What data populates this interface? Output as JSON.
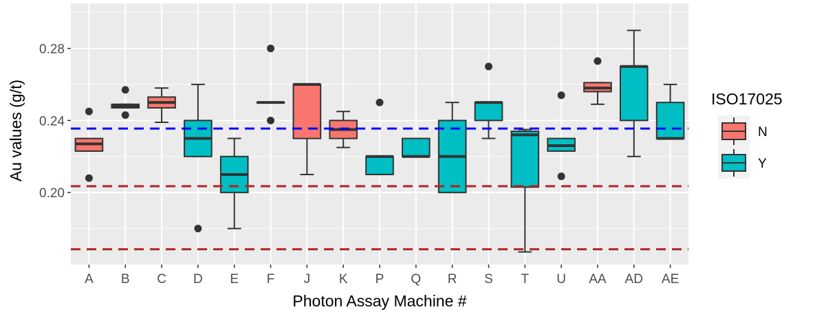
{
  "chart_data": {
    "type": "boxplot",
    "xlabel": "Photon Assay Machine #",
    "ylabel": "Au values (g/t)",
    "ylim": [
      0.16,
      0.305
    ],
    "yticks": [
      0.2,
      0.24,
      0.28
    ],
    "ytick_labels": [
      "0.20",
      "0.24",
      "0.28"
    ],
    "grid": true,
    "legend": {
      "title": "ISO17025",
      "position": "right",
      "entries": [
        {
          "label": "N",
          "color": "#F8766D"
        },
        {
          "label": "Y",
          "color": "#00BFC4"
        }
      ]
    },
    "reference_lines": [
      {
        "y": 0.2355,
        "color": "#0000ff",
        "style": "dashed"
      },
      {
        "y": 0.2035,
        "color": "#b22222",
        "style": "dashed"
      },
      {
        "y": 0.1685,
        "color": "#b22222",
        "style": "dashed"
      }
    ],
    "categories": [
      "A",
      "B",
      "C",
      "D",
      "E",
      "F",
      "J",
      "K",
      "P",
      "Q",
      "R",
      "S",
      "T",
      "U",
      "AA",
      "AD",
      "AE"
    ],
    "boxes": [
      {
        "category": "A",
        "group": "N",
        "whisker_low": 0.223,
        "q1": 0.223,
        "median": 0.227,
        "q3": 0.23,
        "whisker_high": 0.23,
        "outliers": [
          0.245,
          0.208
        ]
      },
      {
        "category": "B",
        "group": "N",
        "whisker_low": 0.247,
        "q1": 0.247,
        "median": 0.248,
        "q3": 0.249,
        "whisker_high": 0.249,
        "outliers": [
          0.257,
          0.243
        ]
      },
      {
        "category": "C",
        "group": "N",
        "whisker_low": 0.239,
        "q1": 0.247,
        "median": 0.25,
        "q3": 0.253,
        "whisker_high": 0.258,
        "outliers": []
      },
      {
        "category": "D",
        "group": "Y",
        "whisker_low": 0.22,
        "q1": 0.22,
        "median": 0.23,
        "q3": 0.24,
        "whisker_high": 0.26,
        "outliers": [
          0.18
        ]
      },
      {
        "category": "E",
        "group": "Y",
        "whisker_low": 0.18,
        "q1": 0.2,
        "median": 0.21,
        "q3": 0.22,
        "whisker_high": 0.23,
        "outliers": []
      },
      {
        "category": "F",
        "group": "N",
        "whisker_low": 0.25,
        "q1": 0.25,
        "median": 0.25,
        "q3": 0.25,
        "whisker_high": 0.25,
        "outliers": [
          0.28,
          0.24
        ]
      },
      {
        "category": "J",
        "group": "N",
        "whisker_low": 0.21,
        "q1": 0.23,
        "median": 0.26,
        "q3": 0.26,
        "whisker_high": 0.26,
        "outliers": []
      },
      {
        "category": "K",
        "group": "N",
        "whisker_low": 0.225,
        "q1": 0.23,
        "median": 0.235,
        "q3": 0.24,
        "whisker_high": 0.245,
        "outliers": []
      },
      {
        "category": "P",
        "group": "Y",
        "whisker_low": 0.21,
        "q1": 0.21,
        "median": 0.22,
        "q3": 0.22,
        "whisker_high": 0.22,
        "outliers": [
          0.25
        ]
      },
      {
        "category": "Q",
        "group": "Y",
        "whisker_low": 0.22,
        "q1": 0.22,
        "median": 0.22,
        "q3": 0.23,
        "whisker_high": 0.23,
        "outliers": []
      },
      {
        "category": "R",
        "group": "Y",
        "whisker_low": 0.2,
        "q1": 0.2,
        "median": 0.22,
        "q3": 0.24,
        "whisker_high": 0.25,
        "outliers": []
      },
      {
        "category": "S",
        "group": "Y",
        "whisker_low": 0.23,
        "q1": 0.24,
        "median": 0.25,
        "q3": 0.25,
        "whisker_high": 0.25,
        "outliers": [
          0.27
        ]
      },
      {
        "category": "T",
        "group": "Y",
        "whisker_low": 0.167,
        "q1": 0.203,
        "median": 0.232,
        "q3": 0.234,
        "whisker_high": 0.235,
        "outliers": []
      },
      {
        "category": "U",
        "group": "Y",
        "whisker_low": 0.223,
        "q1": 0.223,
        "median": 0.226,
        "q3": 0.23,
        "whisker_high": 0.23,
        "outliers": [
          0.254,
          0.209
        ]
      },
      {
        "category": "AA",
        "group": "N",
        "whisker_low": 0.249,
        "q1": 0.256,
        "median": 0.258,
        "q3": 0.261,
        "whisker_high": 0.261,
        "outliers": [
          0.273
        ]
      },
      {
        "category": "AD",
        "group": "Y",
        "whisker_low": 0.22,
        "q1": 0.24,
        "median": 0.27,
        "q3": 0.27,
        "whisker_high": 0.29,
        "outliers": []
      },
      {
        "category": "AE",
        "group": "Y",
        "whisker_low": 0.23,
        "q1": 0.23,
        "median": 0.23,
        "q3": 0.25,
        "whisker_high": 0.26,
        "outliers": []
      }
    ],
    "colors": {
      "panel_background": "#ebebeb",
      "grid_major": "#ffffff",
      "box_outline": "#333333",
      "tick_text": "#4d4d4d"
    }
  }
}
